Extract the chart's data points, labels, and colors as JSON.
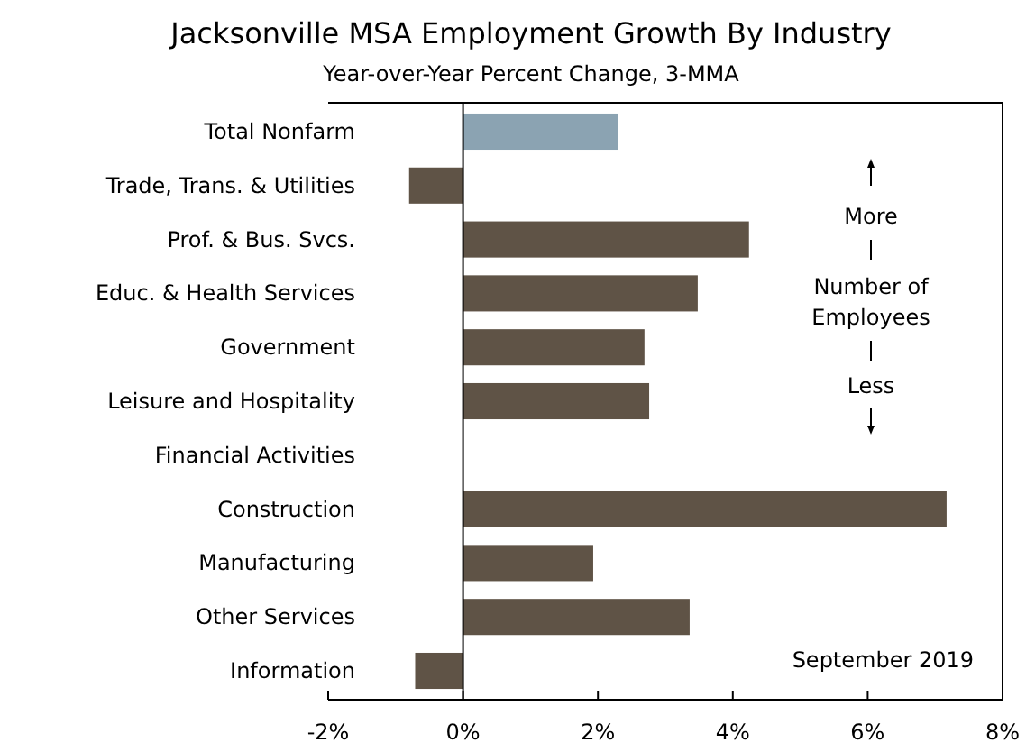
{
  "chart_data": {
    "type": "bar",
    "orientation": "horizontal",
    "title": "Jacksonville MSA Employment Growth By Industry",
    "subtitle": "Year-over-Year Percent Change, 3-MMA",
    "categories": [
      "Total Nonfarm",
      "Trade, Trans. & Utilities",
      "Prof. & Bus. Svcs.",
      "Educ. & Health Services",
      "Government",
      "Leisure and Hospitality",
      "Financial Activities",
      "Construction",
      "Manufacturing",
      "Other Services",
      "Information"
    ],
    "values": [
      2.3,
      -0.8,
      4.24,
      3.48,
      2.69,
      2.76,
      0,
      7.17,
      1.93,
      3.36,
      -0.71
    ],
    "colors": [
      "#8ba3b2",
      "#5f5346",
      "#5f5346",
      "#5f5346",
      "#5f5346",
      "#5f5346",
      "#5f5346",
      "#5f5346",
      "#5f5346",
      "#5f5346",
      "#5f5346"
    ],
    "xlim": [
      -2,
      8
    ],
    "xticks": [
      {
        "value": -2,
        "label": "-2%"
      },
      {
        "value": 0,
        "label": "0%"
      },
      {
        "value": 2,
        "label": "2%"
      },
      {
        "value": 4,
        "label": "4%"
      },
      {
        "value": 6,
        "label": "6%"
      },
      {
        "value": 8,
        "label": "8%"
      }
    ],
    "annotations": [
      "More",
      "Number of Employees",
      "Less",
      "September 2019"
    ]
  }
}
